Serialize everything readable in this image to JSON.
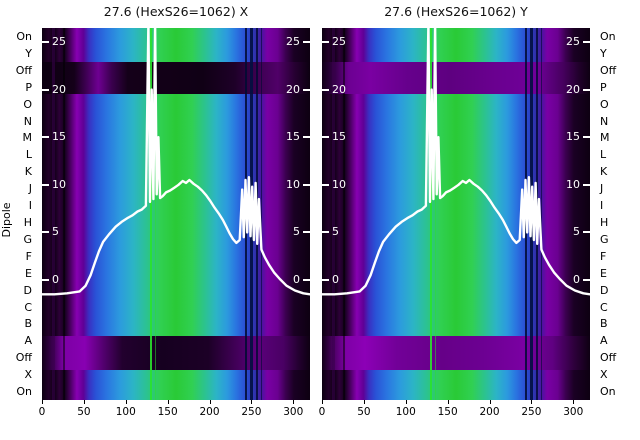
{
  "axis": {
    "dipole_label": "Dipole",
    "row_labels": [
      "On",
      "Y",
      "Off",
      "P",
      "O",
      "N",
      "M",
      "L",
      "K",
      "J",
      "I",
      "H",
      "G",
      "F",
      "E",
      "D",
      "C",
      "B",
      "A",
      "Off",
      "X",
      "On"
    ],
    "x_tick_labels": [
      "0",
      "50",
      "100",
      "150",
      "200",
      "250",
      "300"
    ],
    "x_tick_values": [
      0,
      50,
      100,
      150,
      200,
      250,
      300
    ],
    "inner_tick_labels": [
      "25",
      "20",
      "15",
      "10",
      "5",
      "0"
    ],
    "inner_tick_values": [
      25,
      20,
      15,
      10,
      5,
      0
    ]
  },
  "chart_data": {
    "type": "heatmap",
    "description": "Two false-color beam measurement heatmaps (X and Y planes) versus dipole position, with an overlaid white profile curve and white inner value ticks 0-25. Dark 'Off' bands cross horizontally near top and bottom.",
    "x_range": [
      0,
      320
    ],
    "overlay_value_range": [
      0,
      25
    ],
    "panels": [
      {
        "title": "27.6 (HexS26=1062) X",
        "top_band_stops": [
          {
            "pos": 0,
            "color": "#0c0010"
          },
          {
            "pos": 12,
            "color": "#140019"
          },
          {
            "pos": 17,
            "color": "#43005a"
          },
          {
            "pos": 21,
            "color": "#6e0092"
          },
          {
            "pos": 26,
            "color": "#3a004e"
          },
          {
            "pos": 32,
            "color": "#140019"
          },
          {
            "pos": 60,
            "color": "#100015"
          },
          {
            "pos": 72,
            "color": "#1e0028"
          },
          {
            "pos": 80,
            "color": "#3c0050"
          },
          {
            "pos": 88,
            "color": "#500068"
          },
          {
            "pos": 94,
            "color": "#280034"
          },
          {
            "pos": 100,
            "color": "#0c0010"
          }
        ],
        "bottom_band_stops": [
          {
            "pos": 0,
            "color": "#120018"
          },
          {
            "pos": 4,
            "color": "#3c0050"
          },
          {
            "pos": 8,
            "color": "#7c00a4"
          },
          {
            "pos": 16,
            "color": "#8800b2"
          },
          {
            "pos": 23,
            "color": "#52006e"
          },
          {
            "pos": 30,
            "color": "#22002e"
          },
          {
            "pos": 45,
            "color": "#160020"
          },
          {
            "pos": 62,
            "color": "#1c0026"
          },
          {
            "pos": 72,
            "color": "#400056"
          },
          {
            "pos": 80,
            "color": "#5c007c"
          },
          {
            "pos": 90,
            "color": "#4a0064"
          },
          {
            "pos": 96,
            "color": "#22002e"
          },
          {
            "pos": 100,
            "color": "#0e0012"
          }
        ]
      },
      {
        "title": "27.6 (HexS26=1062) Y",
        "top_band_stops": [
          {
            "pos": 0,
            "color": "#100016"
          },
          {
            "pos": 5,
            "color": "#38004c"
          },
          {
            "pos": 10,
            "color": "#6c0092"
          },
          {
            "pos": 18,
            "color": "#7a00a2"
          },
          {
            "pos": 32,
            "color": "#66008c"
          },
          {
            "pos": 48,
            "color": "#5e0080"
          },
          {
            "pos": 65,
            "color": "#6a0090"
          },
          {
            "pos": 80,
            "color": "#70009a"
          },
          {
            "pos": 90,
            "color": "#46005e"
          },
          {
            "pos": 96,
            "color": "#20002a"
          },
          {
            "pos": 100,
            "color": "#0e0012"
          }
        ],
        "bottom_band_stops": [
          {
            "pos": 0,
            "color": "#120018"
          },
          {
            "pos": 4,
            "color": "#48005e"
          },
          {
            "pos": 9,
            "color": "#7e00a6"
          },
          {
            "pos": 16,
            "color": "#8c00b6"
          },
          {
            "pos": 28,
            "color": "#720098"
          },
          {
            "pos": 45,
            "color": "#660088"
          },
          {
            "pos": 60,
            "color": "#6c0092"
          },
          {
            "pos": 75,
            "color": "#7a00a2"
          },
          {
            "pos": 86,
            "color": "#600082"
          },
          {
            "pos": 94,
            "color": "#2e003c"
          },
          {
            "pos": 100,
            "color": "#0e0012"
          }
        ]
      }
    ],
    "colormap_stops": [
      {
        "pos": 0,
        "color": "#0d0011"
      },
      {
        "pos": 2.5,
        "color": "#230029"
      },
      {
        "pos": 4.5,
        "color": "#0f0014"
      },
      {
        "pos": 6.5,
        "color": "#2d0038"
      },
      {
        "pos": 8.5,
        "color": "#15001d"
      },
      {
        "pos": 10.5,
        "color": "#47005e"
      },
      {
        "pos": 13,
        "color": "#8800b2"
      },
      {
        "pos": 15.5,
        "color": "#5f0096"
      },
      {
        "pos": 17.5,
        "color": "#3930c2"
      },
      {
        "pos": 20,
        "color": "#2a52d6"
      },
      {
        "pos": 24,
        "color": "#2a74e0"
      },
      {
        "pos": 29,
        "color": "#2c9ade"
      },
      {
        "pos": 34,
        "color": "#2cb4c6"
      },
      {
        "pos": 39,
        "color": "#2cc292"
      },
      {
        "pos": 44,
        "color": "#30d052"
      },
      {
        "pos": 50,
        "color": "#2aca36"
      },
      {
        "pos": 56,
        "color": "#30d052"
      },
      {
        "pos": 61,
        "color": "#2cc292"
      },
      {
        "pos": 65,
        "color": "#2cb4c6"
      },
      {
        "pos": 69,
        "color": "#2c9ade"
      },
      {
        "pos": 72.5,
        "color": "#2a74e0"
      },
      {
        "pos": 75.5,
        "color": "#2a52d6"
      },
      {
        "pos": 78,
        "color": "#2a3cc0"
      },
      {
        "pos": 80,
        "color": "#322ea8"
      },
      {
        "pos": 82,
        "color": "#4a14a0"
      },
      {
        "pos": 84,
        "color": "#7a00a6"
      },
      {
        "pos": 88,
        "color": "#6a0090"
      },
      {
        "pos": 91,
        "color": "#3a004e"
      },
      {
        "pos": 94,
        "color": "#1a0024"
      },
      {
        "pos": 100,
        "color": "#0d0011"
      }
    ],
    "vertical_stripes": [
      {
        "x": 14,
        "w": 3,
        "color": "#38004c",
        "alpha": 0.55
      },
      {
        "x": 26,
        "w": 2,
        "color": "#000000",
        "alpha": 0.5
      },
      {
        "x": 130,
        "w": 2,
        "color": "#2ae22c",
        "alpha": 0.9
      },
      {
        "x": 136,
        "w": 1,
        "color": "#2ae22c",
        "alpha": 0.5
      },
      {
        "x": 243,
        "w": 2,
        "color": "#000a32",
        "alpha": 0.85
      },
      {
        "x": 250,
        "w": 3,
        "color": "#021040",
        "alpha": 0.9
      },
      {
        "x": 257,
        "w": 2,
        "color": "#000a32",
        "alpha": 0.8
      },
      {
        "x": 262,
        "w": 1,
        "color": "#000a32",
        "alpha": 0.6
      }
    ],
    "overlay_curve": {
      "x": [
        0,
        15,
        30,
        45,
        52,
        58,
        63,
        68,
        73,
        80,
        88,
        95,
        102,
        108,
        114,
        119,
        124,
        127,
        129,
        131,
        133,
        135,
        137,
        139,
        141,
        144,
        148,
        153,
        158,
        163,
        168,
        172,
        176,
        181,
        186,
        191,
        196,
        201,
        206,
        211,
        216,
        220,
        224,
        228,
        232,
        236,
        239,
        241,
        243,
        245,
        247,
        249,
        251,
        253,
        255,
        257,
        259,
        262,
        266,
        271,
        277,
        284,
        292,
        302,
        312,
        320
      ],
      "v": [
        -1.5,
        -1.5,
        -1.4,
        -1.2,
        -0.6,
        0.5,
        1.8,
        3.0,
        4.0,
        4.8,
        5.6,
        6.1,
        6.5,
        6.8,
        7.2,
        7.4,
        7.8,
        27,
        8.2,
        20,
        8.5,
        27,
        9.0,
        15,
        8.6,
        8.8,
        9.2,
        9.4,
        9.7,
        10.0,
        10.4,
        10.2,
        10.5,
        10.1,
        9.8,
        9.4,
        8.9,
        8.3,
        7.6,
        7.0,
        6.3,
        5.6,
        4.9,
        4.3,
        3.9,
        4.2,
        9.5,
        4.5,
        10.5,
        5.0,
        10.8,
        4.6,
        9.8,
        4.2,
        10.2,
        3.8,
        8.5,
        3.2,
        2.4,
        1.6,
        0.8,
        0.1,
        -0.6,
        -1.1,
        -1.4,
        -1.5
      ]
    }
  }
}
